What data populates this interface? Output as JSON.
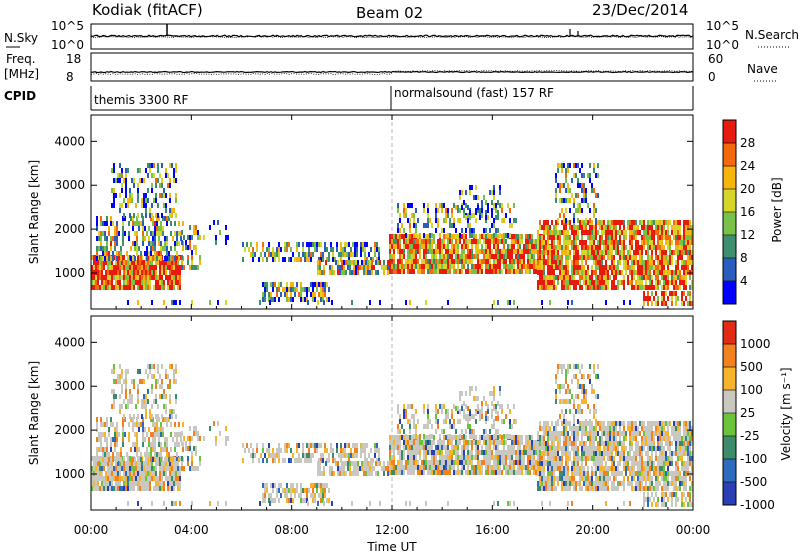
{
  "header": {
    "station": "Kodiak (fitACF)",
    "beam": "Beam 02",
    "date": "23/Dec/2014"
  },
  "noise_panel": {
    "left_label": "N.Sky",
    "right_label": "N.Search",
    "left_ticks": [
      "10^5",
      "10^0"
    ],
    "right_ticks": [
      "10^5",
      "10^0"
    ]
  },
  "freq_panel": {
    "left_label_line1": "Freq.",
    "left_label_line2": "[MHz]",
    "right_label": "Nave",
    "left_ticks": [
      "18",
      "8"
    ],
    "right_ticks": [
      "60",
      "0"
    ]
  },
  "cpid_panel": {
    "label": "CPID",
    "modes": [
      {
        "name": "themis 3300 RF",
        "start": "00:00"
      },
      {
        "name": "normalsound (fast) 157 RF",
        "start": "12:00"
      }
    ]
  },
  "chart_data": [
    {
      "type": "heatmap",
      "panel": "power",
      "ylabel": "Slant Range [km]",
      "xlabel": "",
      "ylim": [
        180,
        4600
      ],
      "yticks": [
        1000,
        2000,
        3000,
        4000
      ],
      "colorbar": {
        "label": "Power [dB]",
        "ticks": [
          "28",
          "24",
          "20",
          "16",
          "12",
          "8",
          "4"
        ]
      },
      "colors": [
        "#0000ff",
        "#2a5dbe",
        "#3f8f6e",
        "#79c24a",
        "#d4d72a",
        "#f6b50e",
        "#f26a0d",
        "#e61a0d"
      ],
      "scatter_regions_hint": "echo bands between ~700 and ~3500 km, densest 800-1500 km"
    },
    {
      "type": "heatmap",
      "panel": "velocity",
      "ylabel": "Slant Range [km]",
      "xlabel": "Time UT",
      "ylim": [
        180,
        4600
      ],
      "yticks": [
        1000,
        2000,
        3000,
        4000
      ],
      "xticks": [
        "00:00",
        "04:00",
        "08:00",
        "12:00",
        "16:00",
        "20:00",
        "00:00"
      ],
      "colorbar": {
        "label": "Velocity [m s⁻¹]",
        "ticks": [
          "1000",
          "500",
          "100",
          "25",
          "-25",
          "-100",
          "-500",
          "-1000"
        ]
      },
      "colors": [
        "#2a3fb5",
        "#2f6bbd",
        "#3c8b6b",
        "#6bc23c",
        "#c8c8c0",
        "#f6b32c",
        "#f2821f",
        "#e22b14"
      ]
    }
  ]
}
